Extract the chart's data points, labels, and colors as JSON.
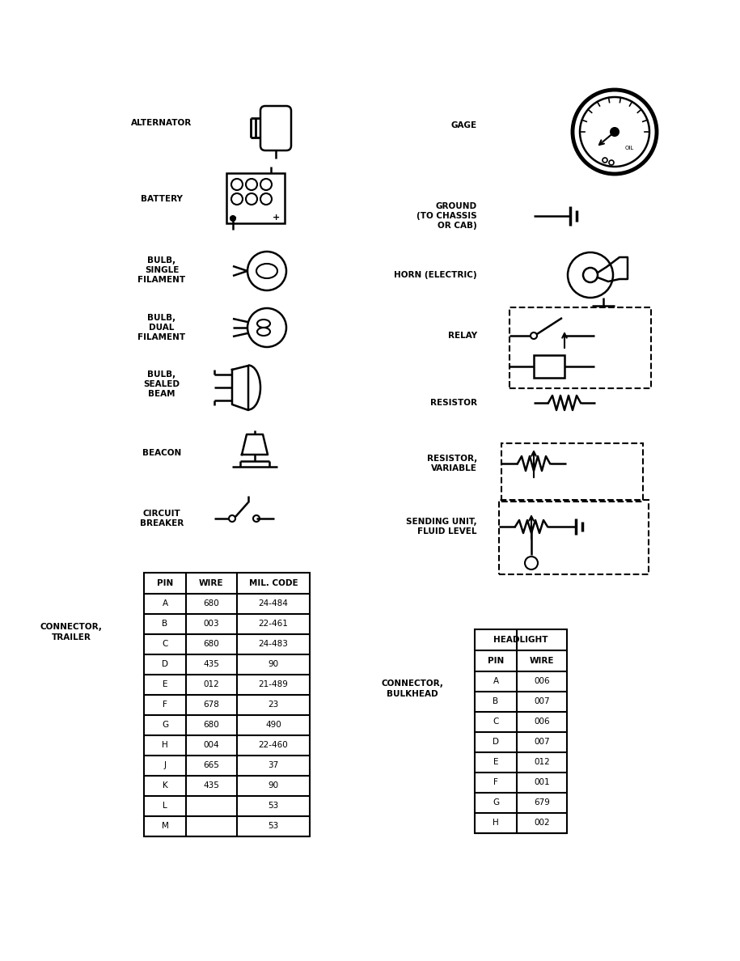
{
  "bg_color": "#ffffff",
  "text_color": "#000000",
  "line_color": "#000000",
  "figsize": [
    9.15,
    11.88
  ],
  "dpi": 100,
  "trailer_table": {
    "headers": [
      "PIN",
      "WIRE",
      "MIL. CODE"
    ],
    "rows": [
      [
        "A",
        "680",
        "24-484"
      ],
      [
        "B",
        "003",
        "22-461"
      ],
      [
        "C",
        "680",
        "24-483"
      ],
      [
        "D",
        "435",
        "90"
      ],
      [
        "E",
        "012",
        "21-489"
      ],
      [
        "F",
        "678",
        "23"
      ],
      [
        "G",
        "680",
        "490"
      ],
      [
        "H",
        "004",
        "22-460"
      ],
      [
        "J",
        "665",
        "37"
      ],
      [
        "K",
        "435",
        "90"
      ],
      [
        "L",
        "",
        "53"
      ],
      [
        "M",
        "",
        "53"
      ]
    ]
  },
  "headlight_table": {
    "title": "HEADLIGHT",
    "headers": [
      "PIN",
      "WIRE"
    ],
    "rows": [
      [
        "A",
        "006"
      ],
      [
        "B",
        "007"
      ],
      [
        "C",
        "006"
      ],
      [
        "D",
        "007"
      ],
      [
        "E",
        "012"
      ],
      [
        "F",
        "001"
      ],
      [
        "G",
        "679"
      ],
      [
        "H",
        "002"
      ]
    ]
  }
}
